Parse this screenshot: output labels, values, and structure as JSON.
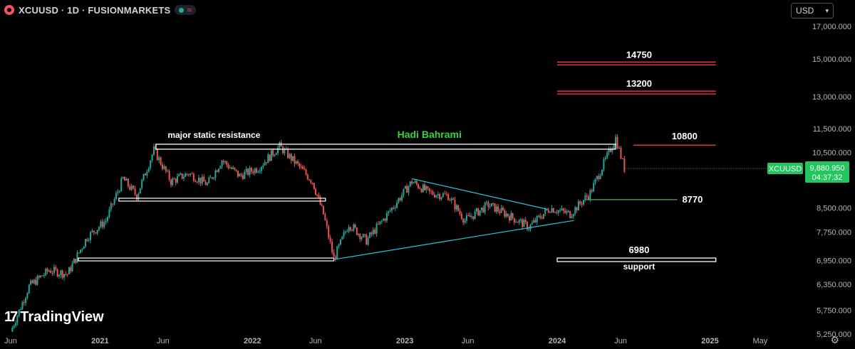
{
  "header": {
    "title": "XCUUSD · 1D · FUSIONMARKETS",
    "currency": "USD"
  },
  "brand": "TradingView",
  "colors": {
    "background": "#000000",
    "up_candle": "#26a69a",
    "down_candle": "#ef5350",
    "resistance_line": "#f23645",
    "trendline": "#26c6da",
    "support_line": "#4caf50",
    "watermark_text": "#3dd13d",
    "price_label_bg": "#22c55e"
  },
  "chart_data": {
    "type": "candlestick",
    "symbol": "XCUUSD",
    "timeframe": "1D",
    "y_scale": "log",
    "y_ticks": [
      "17,000.000",
      "15,000.000",
      "13,000.000",
      "11,500.000",
      "10,500.000",
      "9,880.950",
      "8,500.000",
      "7,750.000",
      "6,950.000",
      "6,350.000",
      "5,750.000",
      "5,250.000"
    ],
    "y_tick_values": [
      17000,
      15000,
      13000,
      11500,
      10500,
      8500,
      7750,
      6950,
      6350,
      5750,
      5250
    ],
    "x_ticks": [
      "Jun",
      "2021",
      "Jun",
      "2022",
      "Jun",
      "2023",
      "Jun",
      "2024",
      "Jun",
      "2025",
      "May"
    ],
    "current_price": {
      "symbol": "XCUUSD",
      "price": "9,880.950",
      "countdown": "04:37:32",
      "value": 9880.95
    },
    "annotations": [
      {
        "text": "major static resistance",
        "kind": "zone",
        "value": 10750
      },
      {
        "text": "Hadi Bahrami",
        "kind": "watermark"
      },
      {
        "text": "14750",
        "kind": "resistance",
        "value": 14750
      },
      {
        "text": "13200",
        "kind": "resistance",
        "value": 13200
      },
      {
        "text": "10800",
        "kind": "resistance",
        "value": 10800
      },
      {
        "text": "8770",
        "kind": "support",
        "value": 8770
      },
      {
        "text": "6980",
        "kind": "support_zone",
        "value": 6980
      },
      {
        "text": "support",
        "kind": "label"
      }
    ],
    "price_path": [
      {
        "date": "2020-06-01",
        "price": 5300
      },
      {
        "date": "2020-07-15",
        "price": 6300
      },
      {
        "date": "2020-09-01",
        "price": 6700
      },
      {
        "date": "2020-10-15",
        "price": 6600
      },
      {
        "date": "2020-12-01",
        "price": 7600
      },
      {
        "date": "2021-01-15",
        "price": 8100
      },
      {
        "date": "2021-02-25",
        "price": 9500
      },
      {
        "date": "2021-03-30",
        "price": 8900
      },
      {
        "date": "2021-05-10",
        "price": 10600
      },
      {
        "date": "2021-06-20",
        "price": 9400
      },
      {
        "date": "2021-08-01",
        "price": 9700
      },
      {
        "date": "2021-09-15",
        "price": 9300
      },
      {
        "date": "2021-10-20",
        "price": 10200
      },
      {
        "date": "2021-12-01",
        "price": 9600
      },
      {
        "date": "2022-01-15",
        "price": 9900
      },
      {
        "date": "2022-03-07",
        "price": 10750
      },
      {
        "date": "2022-04-20",
        "price": 10000
      },
      {
        "date": "2022-05-25",
        "price": 9400
      },
      {
        "date": "2022-06-20",
        "price": 8300
      },
      {
        "date": "2022-07-15",
        "price": 7000
      },
      {
        "date": "2022-08-20",
        "price": 8000
      },
      {
        "date": "2022-10-01",
        "price": 7500
      },
      {
        "date": "2022-11-15",
        "price": 8200
      },
      {
        "date": "2023-01-18",
        "price": 9400
      },
      {
        "date": "2023-03-01",
        "price": 9000
      },
      {
        "date": "2023-04-15",
        "price": 8900
      },
      {
        "date": "2023-05-25",
        "price": 8100
      },
      {
        "date": "2023-07-20",
        "price": 8600
      },
      {
        "date": "2023-09-01",
        "price": 8300
      },
      {
        "date": "2023-10-25",
        "price": 7900
      },
      {
        "date": "2023-12-15",
        "price": 8500
      },
      {
        "date": "2024-02-01",
        "price": 8300
      },
      {
        "date": "2024-03-20",
        "price": 9000
      },
      {
        "date": "2024-05-20",
        "price": 11100
      },
      {
        "date": "2024-06-10",
        "price": 9880.95
      }
    ],
    "trendlines": [
      {
        "from": {
          "date": "2022-07-15",
          "price": 6980
        },
        "to": {
          "date": "2024-02-10",
          "price": 8100
        }
      },
      {
        "from": {
          "date": "2023-01-18",
          "price": 9500
        },
        "to": {
          "date": "2023-12-10",
          "price": 8450
        }
      }
    ]
  }
}
